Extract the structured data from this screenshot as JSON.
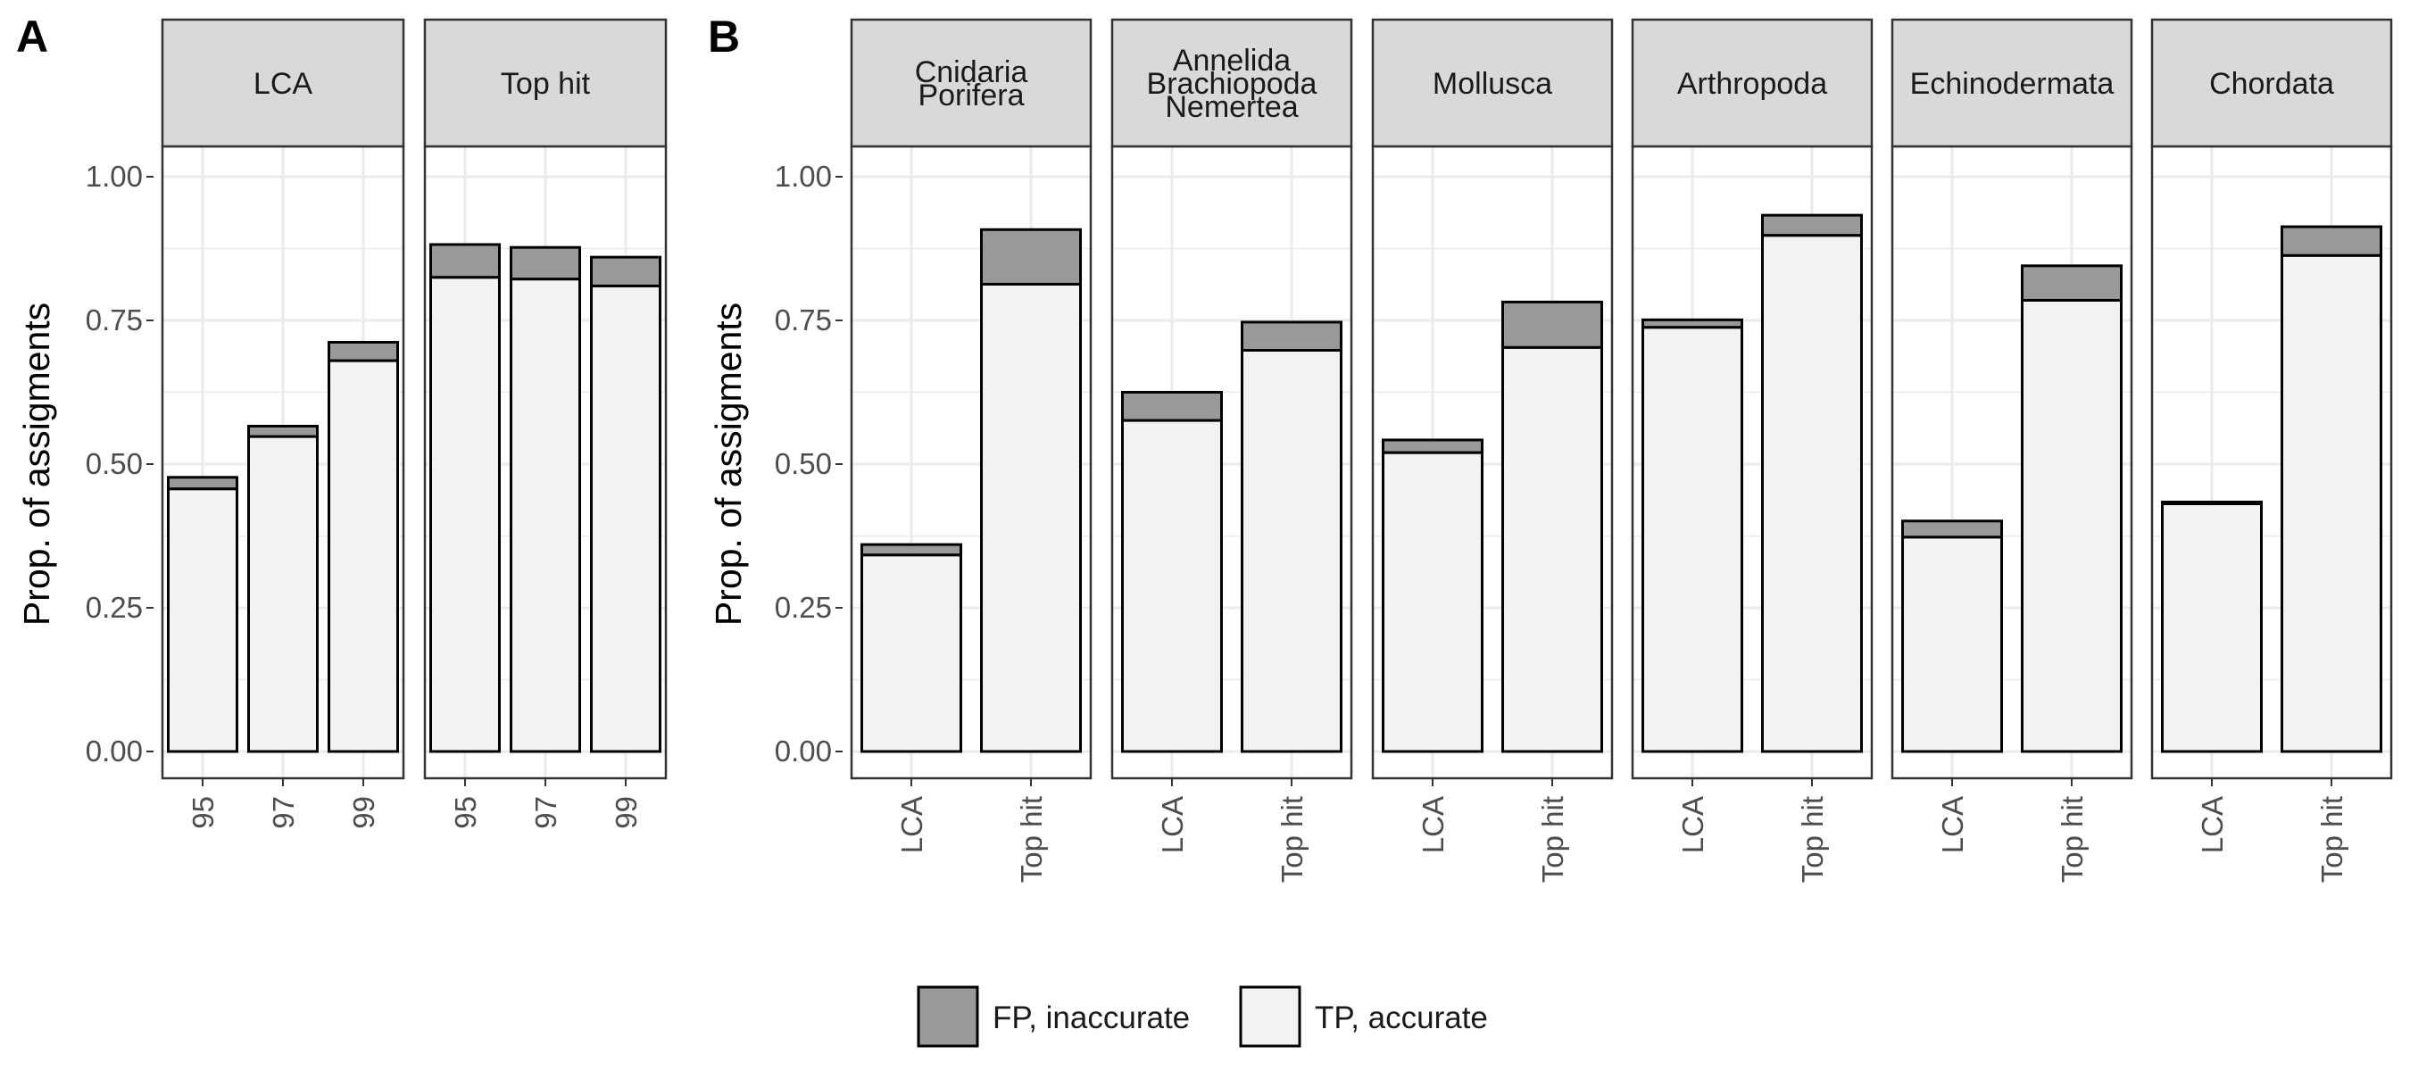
{
  "chart_data": [
    {
      "type": "bar",
      "stacked": true,
      "panel_label": "A",
      "ylabel": "Prop. of assigments",
      "ylim": [
        0,
        1.1
      ],
      "yticks": [
        "0.00",
        "0.25",
        "0.50",
        "0.75",
        "1.00"
      ],
      "grid": true,
      "stack_order": [
        "TP, accurate",
        "FP, inaccurate"
      ],
      "facets": [
        {
          "strip": [
            "LCA"
          ],
          "categories": [
            "95",
            "97",
            "99"
          ],
          "series": [
            {
              "name": "TP, accurate",
              "values": [
                0.457,
                0.548,
                0.68
              ]
            },
            {
              "name": "FP, inaccurate",
              "values": [
                0.02,
                0.018,
                0.032
              ]
            }
          ]
        },
        {
          "strip": [
            "Top hit"
          ],
          "categories": [
            "95",
            "97",
            "99"
          ],
          "series": [
            {
              "name": "TP, accurate",
              "values": [
                0.825,
                0.822,
                0.81
              ]
            },
            {
              "name": "FP, inaccurate",
              "values": [
                0.057,
                0.055,
                0.05
              ]
            }
          ]
        }
      ]
    },
    {
      "type": "bar",
      "stacked": true,
      "panel_label": "B",
      "ylabel": "Prop. of assigments",
      "ylim": [
        0,
        1.1
      ],
      "yticks": [
        "0.00",
        "0.25",
        "0.50",
        "0.75",
        "1.00"
      ],
      "grid": true,
      "stack_order": [
        "TP, accurate",
        "FP, inaccurate"
      ],
      "facets": [
        {
          "strip": [
            "Cnidaria",
            "Porifera"
          ],
          "categories": [
            "LCA",
            "Top hit"
          ],
          "series": [
            {
              "name": "TP, accurate",
              "values": [
                0.342,
                0.813
              ]
            },
            {
              "name": "FP, inaccurate",
              "values": [
                0.018,
                0.095
              ]
            }
          ]
        },
        {
          "strip": [
            "Annelida",
            "Brachiopoda",
            "Nemertea"
          ],
          "categories": [
            "LCA",
            "Top hit"
          ],
          "series": [
            {
              "name": "TP, accurate",
              "values": [
                0.576,
                0.698
              ]
            },
            {
              "name": "FP, inaccurate",
              "values": [
                0.049,
                0.049
              ]
            }
          ]
        },
        {
          "strip": [
            "Mollusca"
          ],
          "categories": [
            "LCA",
            "Top hit"
          ],
          "series": [
            {
              "name": "TP, accurate",
              "values": [
                0.52,
                0.703
              ]
            },
            {
              "name": "FP, inaccurate",
              "values": [
                0.022,
                0.079
              ]
            }
          ]
        },
        {
          "strip": [
            "Arthropoda"
          ],
          "categories": [
            "LCA",
            "Top hit"
          ],
          "series": [
            {
              "name": "TP, accurate",
              "values": [
                0.738,
                0.898
              ]
            },
            {
              "name": "FP, inaccurate",
              "values": [
                0.013,
                0.035
              ]
            }
          ]
        },
        {
          "strip": [
            "Echinodermata"
          ],
          "categories": [
            "LCA",
            "Top hit"
          ],
          "series": [
            {
              "name": "TP, accurate",
              "values": [
                0.373,
                0.785
              ]
            },
            {
              "name": "FP, inaccurate",
              "values": [
                0.028,
                0.06
              ]
            }
          ]
        },
        {
          "strip": [
            "Chordata"
          ],
          "categories": [
            "LCA",
            "Top hit"
          ],
          "series": [
            {
              "name": "TP, accurate",
              "values": [
                0.431,
                0.863
              ]
            },
            {
              "name": "FP, inaccurate",
              "values": [
                0.003,
                0.05
              ]
            }
          ]
        }
      ]
    }
  ],
  "legend": {
    "position": "bottom",
    "items": [
      {
        "label": "FP, inaccurate",
        "color": "#999999"
      },
      {
        "label": "TP, accurate",
        "color": "#f2f2f2"
      }
    ]
  },
  "colors": {
    "fp_fill": "#999999",
    "tp_fill": "#f2f2f2",
    "strip_fill": "#d9d9d9",
    "grid": "#ebebeb",
    "outline": "#000000",
    "panel_border": "#333333"
  }
}
